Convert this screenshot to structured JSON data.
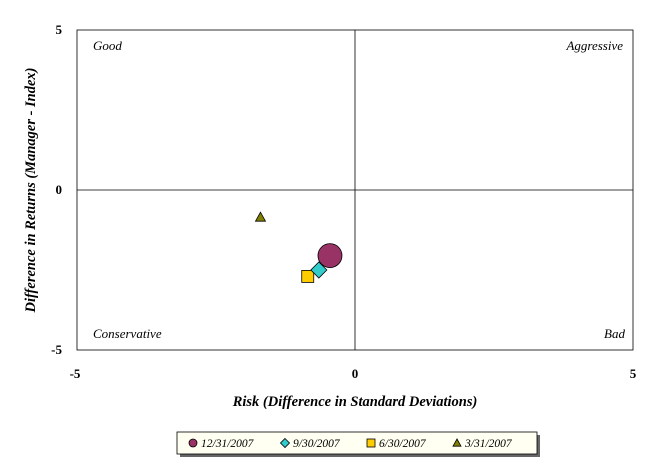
{
  "chart_data": {
    "type": "scatter",
    "title": "",
    "xlabel": "Risk (Difference in Standard Deviations)",
    "ylabel": "Difference in Returns (Manager - Index)",
    "xlim": [
      -5,
      5
    ],
    "ylim": [
      -5,
      5
    ],
    "x_ticks": [
      "-5",
      "0",
      "5"
    ],
    "y_ticks": [
      "5",
      "0",
      "-5"
    ],
    "grid": false,
    "reference_lines": {
      "x": 0,
      "y": 0
    },
    "quadrant_labels": {
      "top_left": "Good",
      "top_right": "Aggressive",
      "bottom_left": "Conservative",
      "bottom_right": "Bad"
    },
    "legend_position": "bottom",
    "series": [
      {
        "name": "12/31/2007",
        "x": [
          -0.45
        ],
        "y": [
          -2.05
        ],
        "marker": "circle",
        "color": "#993366"
      },
      {
        "name": "9/30/2007",
        "x": [
          -0.65
        ],
        "y": [
          -2.5
        ],
        "marker": "diamond",
        "color": "#33CCCC"
      },
      {
        "name": "6/30/2007",
        "x": [
          -0.85
        ],
        "y": [
          -2.7
        ],
        "marker": "square",
        "color": "#FFCC00"
      },
      {
        "name": "3/31/2007",
        "x": [
          -1.7
        ],
        "y": [
          -0.85
        ],
        "marker": "triangle",
        "color": "#808000"
      }
    ]
  }
}
